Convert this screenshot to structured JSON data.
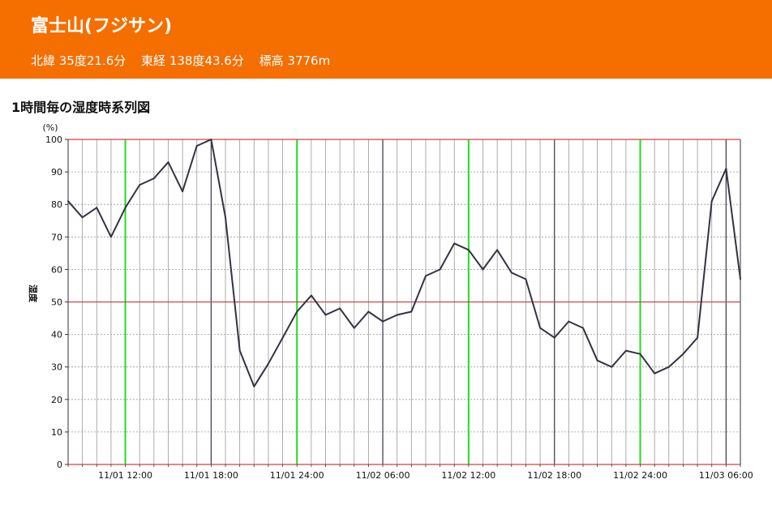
{
  "header": {
    "title": "富士山(フジサン)",
    "lat": "北緯 35度21.6分",
    "lon": "東経 138度43.6分",
    "elev": "標高 3776m"
  },
  "chart_data": {
    "type": "line",
    "title": "1時間毎の湿度時系列図",
    "ylabel": "湿度",
    "yunit": "(%)",
    "ylim": [
      0,
      100
    ],
    "yticks": [
      0,
      10,
      20,
      30,
      40,
      50,
      60,
      70,
      80,
      90,
      100
    ],
    "x_start": "11/01 08:00",
    "x_end": "11/03 06:00",
    "xtick_labels": [
      "11/01 12:00",
      "11/01 18:00",
      "11/01 24:00",
      "11/02 06:00",
      "11/02 12:00",
      "11/02 18:00",
      "11/02 24:00",
      "11/03 06:00"
    ],
    "grid": true,
    "series": [
      {
        "name": "",
        "hourly_values": [
          81,
          76,
          79,
          70,
          79,
          86,
          88,
          93,
          84,
          98,
          100,
          76,
          35,
          24,
          31,
          39,
          47,
          52,
          46,
          48,
          42,
          47,
          44,
          46,
          47,
          58,
          60,
          68,
          66,
          60,
          66,
          59,
          57,
          42,
          39,
          44,
          42,
          32,
          30,
          35,
          34,
          28,
          30,
          34,
          39,
          81,
          91,
          57
        ]
      }
    ],
    "colors": {
      "line": "#333344",
      "gridline": "#999999",
      "major_gridline": "#444455",
      "midnight_line": "#bb3333",
      "noon_line": "#22dd22",
      "ref_line": "#cc4444"
    }
  }
}
